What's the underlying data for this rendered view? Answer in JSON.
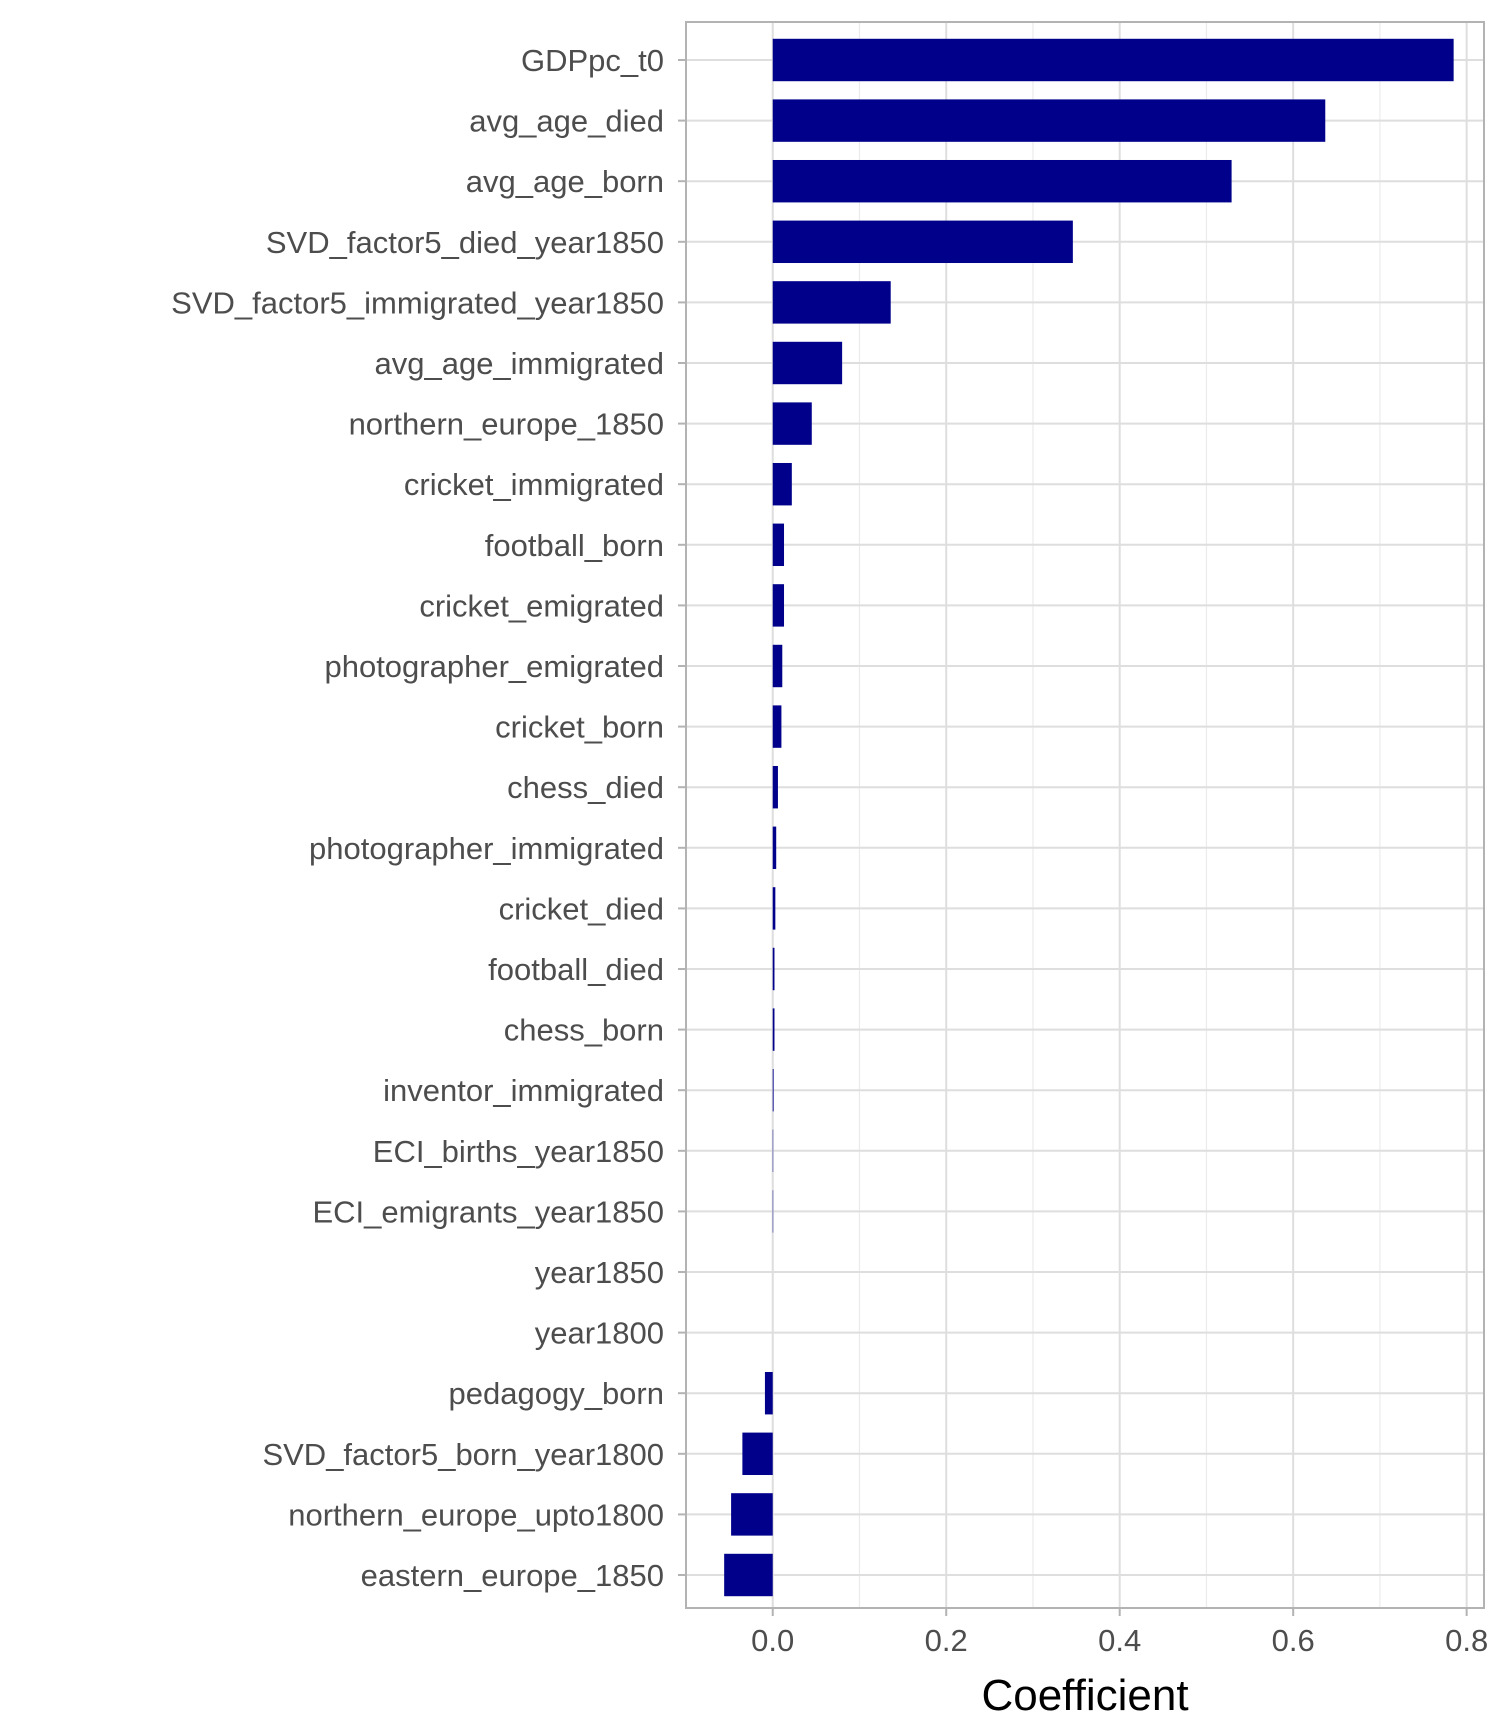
{
  "chart_data": {
    "type": "bar",
    "orientation": "horizontal",
    "xlabel": "Coefficient",
    "ylabel": "",
    "title": "",
    "xlim": [
      -0.1,
      0.82
    ],
    "x_ticks": [
      0.0,
      0.2,
      0.4,
      0.6,
      0.8
    ],
    "x_tick_labels": [
      "0.0",
      "0.2",
      "0.4",
      "0.6",
      "0.8"
    ],
    "grid": true,
    "bar_color": "#00008B",
    "categories": [
      "GDPpc_t0",
      "avg_age_died",
      "avg_age_born",
      "SVD_factor5_died_year1850",
      "SVD_factor5_immigrated_year1850",
      "avg_age_immigrated",
      "northern_europe_1850",
      "cricket_immigrated",
      "football_born",
      "cricket_emigrated",
      "photographer_emigrated",
      "cricket_born",
      "chess_died",
      "photographer_immigrated",
      "cricket_died",
      "football_died",
      "chess_born",
      "inventor_immigrated",
      "ECI_births_year1850",
      "ECI_emigrants_year1850",
      "year1850",
      "year1800",
      "pedagogy_born",
      "SVD_factor5_born_year1800",
      "northern_europe_upto1800",
      "eastern_europe_1850"
    ],
    "values": [
      0.785,
      0.637,
      0.529,
      0.346,
      0.136,
      0.08,
      0.045,
      0.022,
      0.013,
      0.013,
      0.011,
      0.01,
      0.006,
      0.004,
      0.003,
      0.002,
      0.002,
      0.001,
      0.0005,
      0.0005,
      0.0,
      0.0,
      -0.009,
      -0.035,
      -0.048,
      -0.056
    ]
  }
}
